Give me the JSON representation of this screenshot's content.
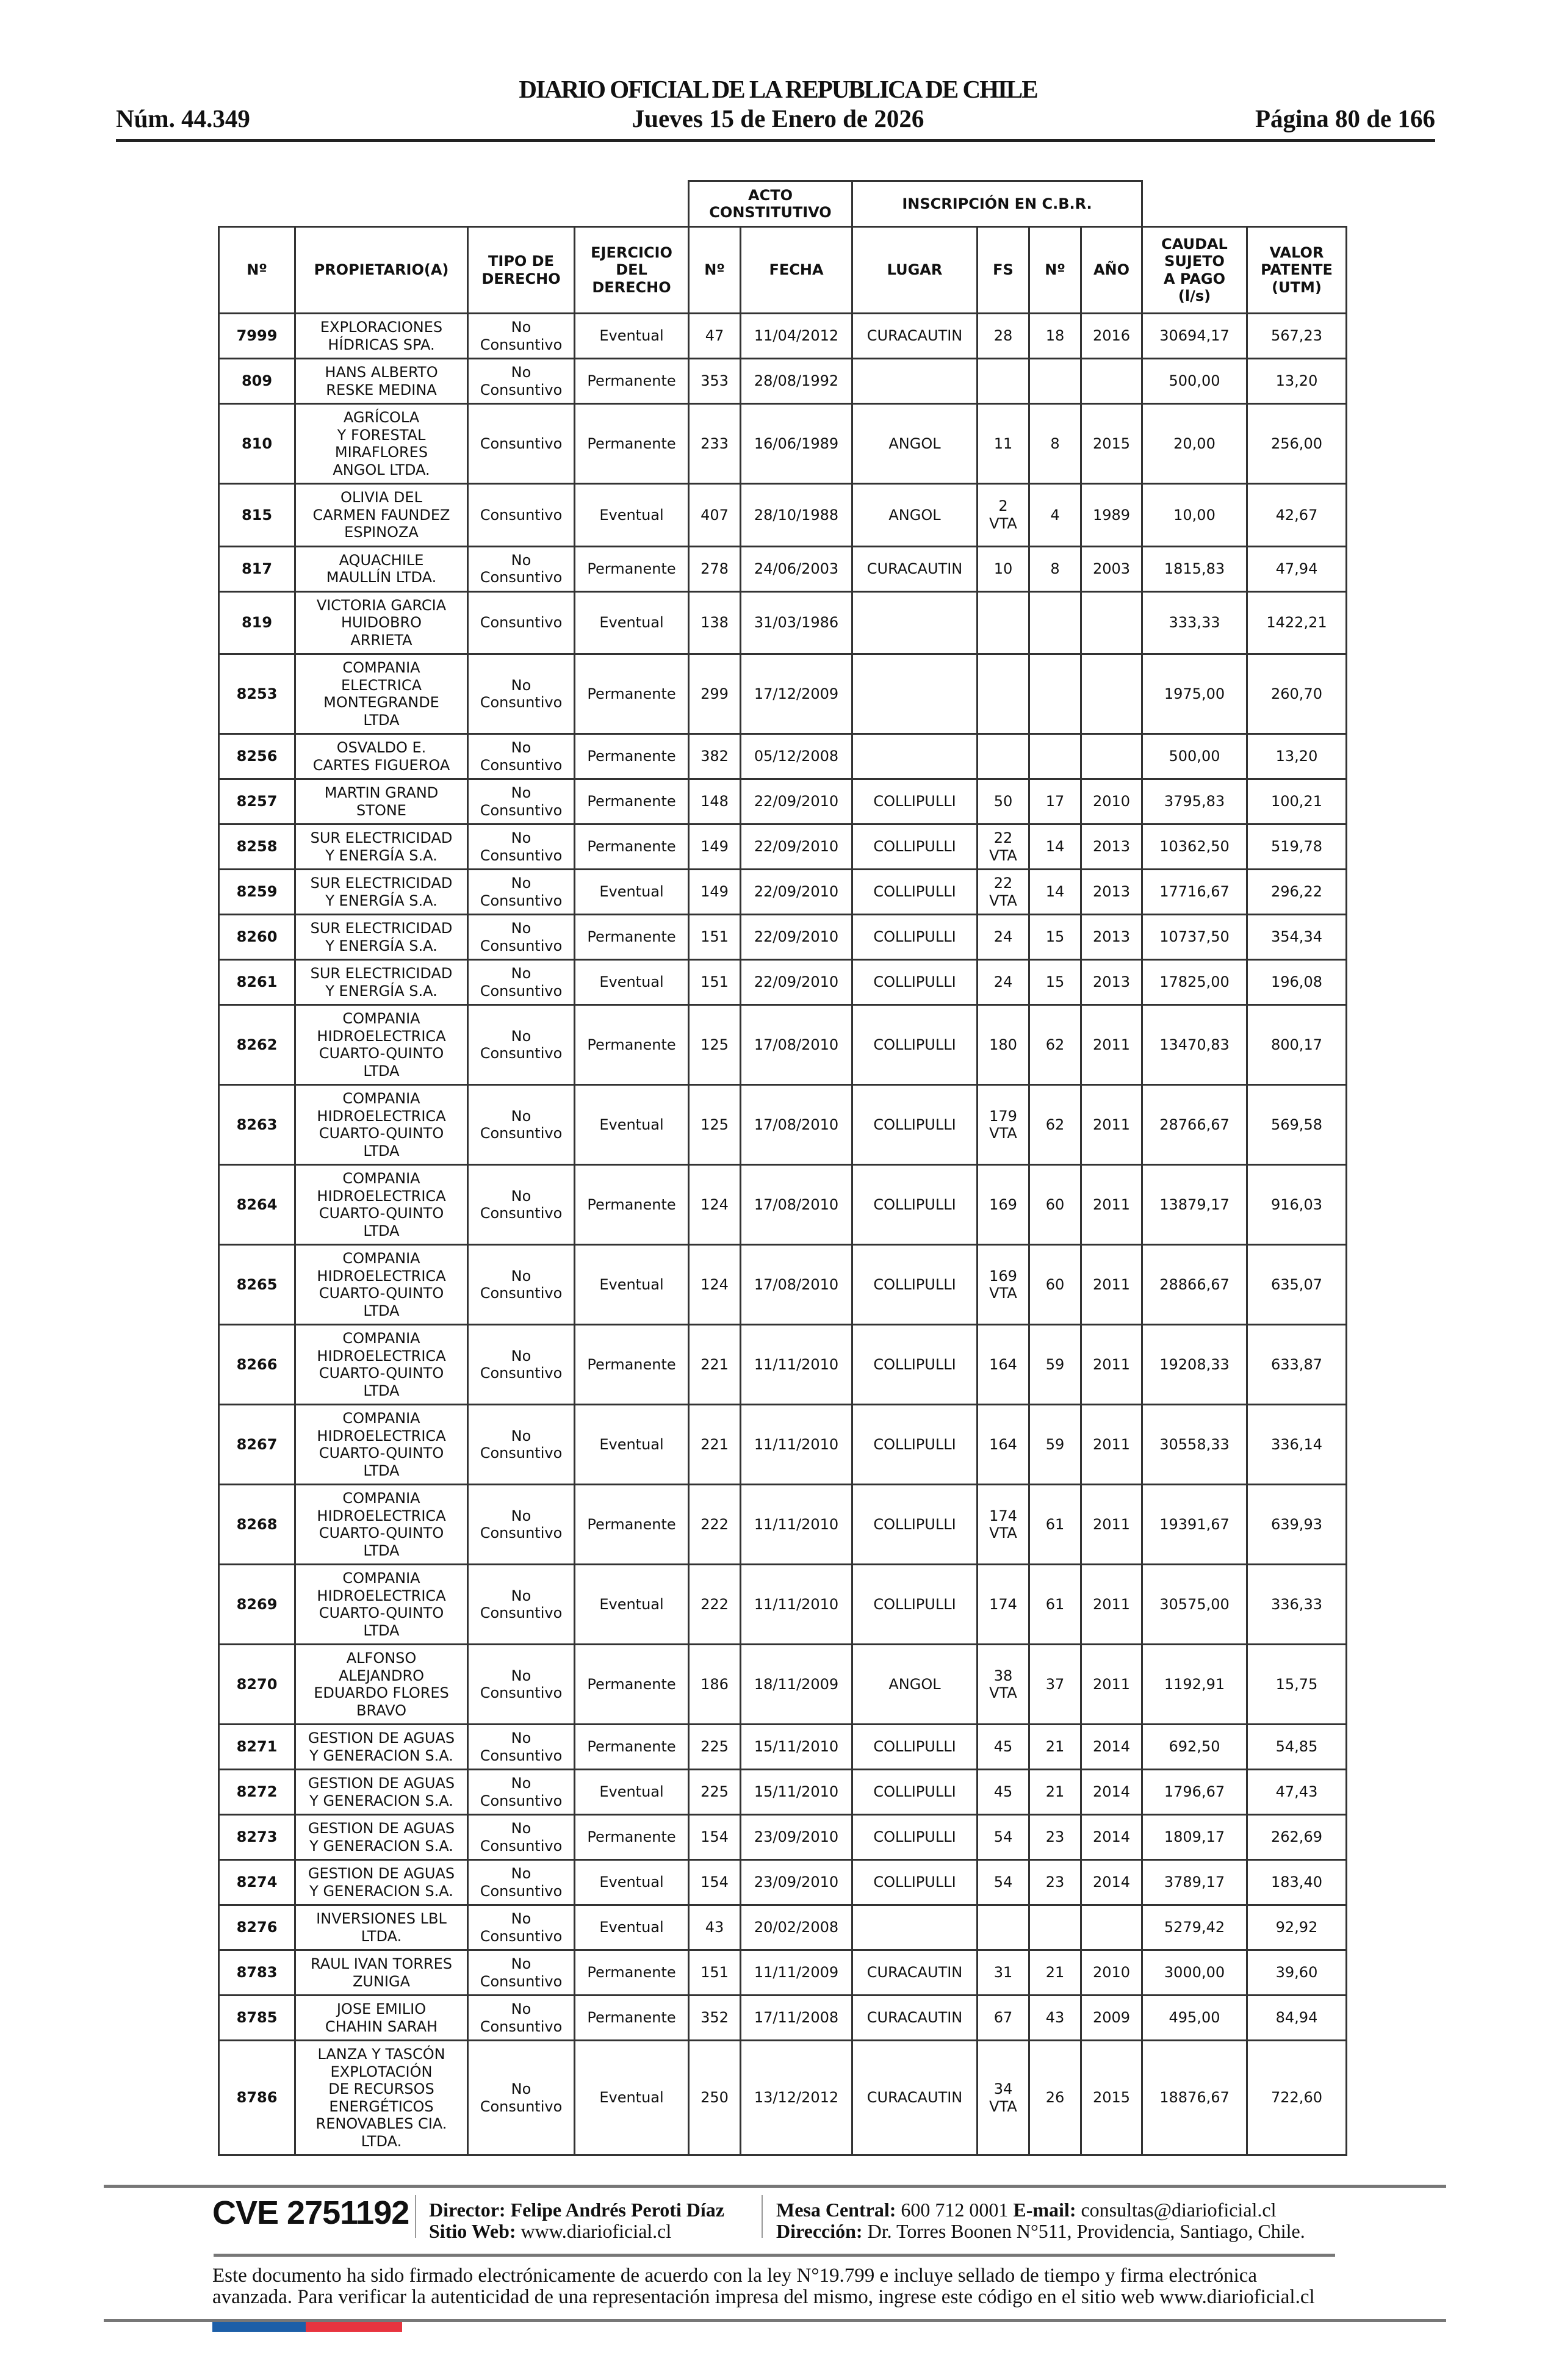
{
  "header": {
    "title": "DIARIO OFICIAL DE LA REPUBLICA DE CHILE",
    "issue_number": "Núm. 44.349",
    "date": "Jueves 15 de Enero de 2026",
    "page": "Página 80 de 166"
  },
  "table": {
    "group_headers": {
      "acto": "ACTO\nCONSTITUTIVO",
      "inscripcion": "INSCRIPCIÓN EN C.B.R."
    },
    "columns": [
      "Nº",
      "PROPIETARIO(A)",
      "TIPO DE\nDERECHO",
      "EJERCICIO\nDEL\nDERECHO",
      "Nº",
      "FECHA",
      "LUGAR",
      "FS",
      "Nº",
      "AÑO",
      "CAUDAL\nSUJETO\nA PAGO\n(l/s)",
      "VALOR\nPATENTE\n(UTM)"
    ],
    "rows": [
      [
        "7999",
        "EXPLORACIONES\nHÍDRICAS SPA.",
        "No\nConsuntivo",
        "Eventual",
        "47",
        "11/04/2012",
        "CURACAUTIN",
        "28",
        "18",
        "2016",
        "30694,17",
        "567,23"
      ],
      [
        "809",
        "HANS ALBERTO\nRESKE MEDINA",
        "No\nConsuntivo",
        "Permanente",
        "353",
        "28/08/1992",
        "",
        "",
        "",
        "",
        "500,00",
        "13,20"
      ],
      [
        "810",
        "AGRÍCOLA\nY FORESTAL\nMIRAFLORES\nANGOL LTDA.",
        "Consuntivo",
        "Permanente",
        "233",
        "16/06/1989",
        "ANGOL",
        "11",
        "8",
        "2015",
        "20,00",
        "256,00"
      ],
      [
        "815",
        "OLIVIA DEL\nCARMEN FAUNDEZ\nESPINOZA",
        "Consuntivo",
        "Eventual",
        "407",
        "28/10/1988",
        "ANGOL",
        "2\nVTA",
        "4",
        "1989",
        "10,00",
        "42,67"
      ],
      [
        "817",
        "AQUACHILE\nMAULLÍN LTDA.",
        "No\nConsuntivo",
        "Permanente",
        "278",
        "24/06/2003",
        "CURACAUTIN",
        "10",
        "8",
        "2003",
        "1815,83",
        "47,94"
      ],
      [
        "819",
        "VICTORIA GARCIA\nHUIDOBRO\nARRIETA",
        "Consuntivo",
        "Eventual",
        "138",
        "31/03/1986",
        "",
        "",
        "",
        "",
        "333,33",
        "1422,21"
      ],
      [
        "8253",
        "COMPANIA\nELECTRICA\nMONTEGRANDE\nLTDA",
        "No\nConsuntivo",
        "Permanente",
        "299",
        "17/12/2009",
        "",
        "",
        "",
        "",
        "1975,00",
        "260,70"
      ],
      [
        "8256",
        "OSVALDO E.\nCARTES FIGUEROA",
        "No\nConsuntivo",
        "Permanente",
        "382",
        "05/12/2008",
        "",
        "",
        "",
        "",
        "500,00",
        "13,20"
      ],
      [
        "8257",
        "MARTIN GRAND\nSTONE",
        "No\nConsuntivo",
        "Permanente",
        "148",
        "22/09/2010",
        "COLLIPULLI",
        "50",
        "17",
        "2010",
        "3795,83",
        "100,21"
      ],
      [
        "8258",
        "SUR ELECTRICIDAD\nY ENERGÍA S.A.",
        "No\nConsuntivo",
        "Permanente",
        "149",
        "22/09/2010",
        "COLLIPULLI",
        "22\nVTA",
        "14",
        "2013",
        "10362,50",
        "519,78"
      ],
      [
        "8259",
        "SUR ELECTRICIDAD\nY ENERGÍA S.A.",
        "No\nConsuntivo",
        "Eventual",
        "149",
        "22/09/2010",
        "COLLIPULLI",
        "22\nVTA",
        "14",
        "2013",
        "17716,67",
        "296,22"
      ],
      [
        "8260",
        "SUR ELECTRICIDAD\nY ENERGÍA S.A.",
        "No\nConsuntivo",
        "Permanente",
        "151",
        "22/09/2010",
        "COLLIPULLI",
        "24",
        "15",
        "2013",
        "10737,50",
        "354,34"
      ],
      [
        "8261",
        "SUR ELECTRICIDAD\nY ENERGÍA S.A.",
        "No\nConsuntivo",
        "Eventual",
        "151",
        "22/09/2010",
        "COLLIPULLI",
        "24",
        "15",
        "2013",
        "17825,00",
        "196,08"
      ],
      [
        "8262",
        "COMPANIA\nHIDROELECTRICA\nCUARTO-QUINTO\nLTDA",
        "No\nConsuntivo",
        "Permanente",
        "125",
        "17/08/2010",
        "COLLIPULLI",
        "180",
        "62",
        "2011",
        "13470,83",
        "800,17"
      ],
      [
        "8263",
        "COMPANIA\nHIDROELECTRICA\nCUARTO-QUINTO\nLTDA",
        "No\nConsuntivo",
        "Eventual",
        "125",
        "17/08/2010",
        "COLLIPULLI",
        "179\nVTA",
        "62",
        "2011",
        "28766,67",
        "569,58"
      ],
      [
        "8264",
        "COMPANIA\nHIDROELECTRICA\nCUARTO-QUINTO\nLTDA",
        "No\nConsuntivo",
        "Permanente",
        "124",
        "17/08/2010",
        "COLLIPULLI",
        "169",
        "60",
        "2011",
        "13879,17",
        "916,03"
      ],
      [
        "8265",
        "COMPANIA\nHIDROELECTRICA\nCUARTO-QUINTO\nLTDA",
        "No\nConsuntivo",
        "Eventual",
        "124",
        "17/08/2010",
        "COLLIPULLI",
        "169\nVTA",
        "60",
        "2011",
        "28866,67",
        "635,07"
      ],
      [
        "8266",
        "COMPANIA\nHIDROELECTRICA\nCUARTO-QUINTO\nLTDA",
        "No\nConsuntivo",
        "Permanente",
        "221",
        "11/11/2010",
        "COLLIPULLI",
        "164",
        "59",
        "2011",
        "19208,33",
        "633,87"
      ],
      [
        "8267",
        "COMPANIA\nHIDROELECTRICA\nCUARTO-QUINTO\nLTDA",
        "No\nConsuntivo",
        "Eventual",
        "221",
        "11/11/2010",
        "COLLIPULLI",
        "164",
        "59",
        "2011",
        "30558,33",
        "336,14"
      ],
      [
        "8268",
        "COMPANIA\nHIDROELECTRICA\nCUARTO-QUINTO\nLTDA",
        "No\nConsuntivo",
        "Permanente",
        "222",
        "11/11/2010",
        "COLLIPULLI",
        "174\nVTA",
        "61",
        "2011",
        "19391,67",
        "639,93"
      ],
      [
        "8269",
        "COMPANIA\nHIDROELECTRICA\nCUARTO-QUINTO\nLTDA",
        "No\nConsuntivo",
        "Eventual",
        "222",
        "11/11/2010",
        "COLLIPULLI",
        "174",
        "61",
        "2011",
        "30575,00",
        "336,33"
      ],
      [
        "8270",
        "ALFONSO\nALEJANDRO\nEDUARDO FLORES\nBRAVO",
        "No\nConsuntivo",
        "Permanente",
        "186",
        "18/11/2009",
        "ANGOL",
        "38\nVTA",
        "37",
        "2011",
        "1192,91",
        "15,75"
      ],
      [
        "8271",
        "GESTION DE AGUAS\nY GENERACION S.A.",
        "No\nConsuntivo",
        "Permanente",
        "225",
        "15/11/2010",
        "COLLIPULLI",
        "45",
        "21",
        "2014",
        "692,50",
        "54,85"
      ],
      [
        "8272",
        "GESTION DE AGUAS\nY GENERACION S.A.",
        "No\nConsuntivo",
        "Eventual",
        "225",
        "15/11/2010",
        "COLLIPULLI",
        "45",
        "21",
        "2014",
        "1796,67",
        "47,43"
      ],
      [
        "8273",
        "GESTION DE AGUAS\nY GENERACION S.A.",
        "No\nConsuntivo",
        "Permanente",
        "154",
        "23/09/2010",
        "COLLIPULLI",
        "54",
        "23",
        "2014",
        "1809,17",
        "262,69"
      ],
      [
        "8274",
        "GESTION DE AGUAS\nY GENERACION S.A.",
        "No\nConsuntivo",
        "Eventual",
        "154",
        "23/09/2010",
        "COLLIPULLI",
        "54",
        "23",
        "2014",
        "3789,17",
        "183,40"
      ],
      [
        "8276",
        "INVERSIONES LBL\nLTDA.",
        "No\nConsuntivo",
        "Eventual",
        "43",
        "20/02/2008",
        "",
        "",
        "",
        "",
        "5279,42",
        "92,92"
      ],
      [
        "8783",
        "RAUL IVAN TORRES\nZUNIGA",
        "No\nConsuntivo",
        "Permanente",
        "151",
        "11/11/2009",
        "CURACAUTIN",
        "31",
        "21",
        "2010",
        "3000,00",
        "39,60"
      ],
      [
        "8785",
        "JOSE EMILIO\nCHAHIN SARAH",
        "No\nConsuntivo",
        "Permanente",
        "352",
        "17/11/2008",
        "CURACAUTIN",
        "67",
        "43",
        "2009",
        "495,00",
        "84,94"
      ],
      [
        "8786",
        "LANZA Y TASCÓN\nEXPLOTACIÓN\nDE RECURSOS\nENERGÉTICOS\nRENOVABLES CIA.\nLTDA.",
        "No\nConsuntivo",
        "Eventual",
        "250",
        "13/12/2012",
        "CURACAUTIN",
        "34\nVTA",
        "26",
        "2015",
        "18876,67",
        "722,60"
      ]
    ]
  },
  "footer": {
    "cve": "CVE 2751192",
    "director_label": "Director:",
    "director": "Felipe Andrés Peroti Díaz",
    "web_label": "Sitio Web:",
    "web": "www.diarioficial.cl",
    "mesa_label": "Mesa Central:",
    "mesa": "600 712 0001",
    "email_label": "E-mail:",
    "email": "consultas@diarioficial.cl",
    "address_label": "Dirección:",
    "address": "Dr. Torres Boonen N°511, Providencia, Santiago, Chile.",
    "notice": "Este documento ha sido firmado electrónicamente de acuerdo con la ley N°19.799 e incluye sellado de tiempo y firma electrónica avanzada. Para verificar la autenticidad de una representación impresa del mismo, ingrese este código en el sitio web www.diarioficial.cl",
    "flag_colors": {
      "blue": "#1d5fa8",
      "red": "#e8343f"
    }
  }
}
